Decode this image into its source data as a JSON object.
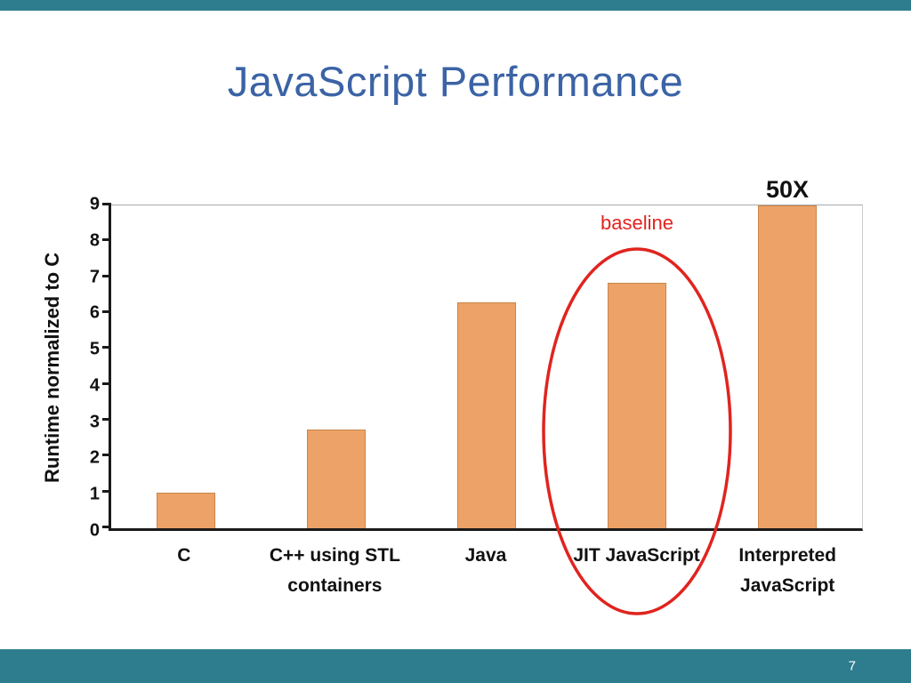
{
  "slide": {
    "title": "JavaScript Performance",
    "page_number": "7",
    "accent_color": "#2E7D8E",
    "title_color": "#3B63A5"
  },
  "chart_data": {
    "type": "bar",
    "categories": [
      "C",
      "C++ using STL\ncontainers",
      "Java",
      "JIT JavaScript",
      "Interpreted\nJavaScript"
    ],
    "values": [
      1,
      2.75,
      6.3,
      6.85,
      9
    ],
    "title": "",
    "xlabel": "",
    "ylabel": "Runtime normalized to C",
    "ylim": [
      0,
      9
    ],
    "yticks": [
      0,
      1,
      2,
      3,
      4,
      5,
      6,
      7,
      8,
      9
    ],
    "bar_color": "#EDA267",
    "grid": false,
    "legend": false,
    "annotations": [
      {
        "text": "baseline",
        "color": "#E2231F",
        "target_category": "JIT JavaScript"
      },
      {
        "text": "50X",
        "color": "#111111",
        "target_category": "Interpreted JavaScript",
        "note": "bar clipped at axis max of 9; actual value is 50x"
      }
    ],
    "highlight": {
      "shape": "ellipse",
      "color": "#E0241F",
      "target_category": "JIT JavaScript"
    }
  }
}
